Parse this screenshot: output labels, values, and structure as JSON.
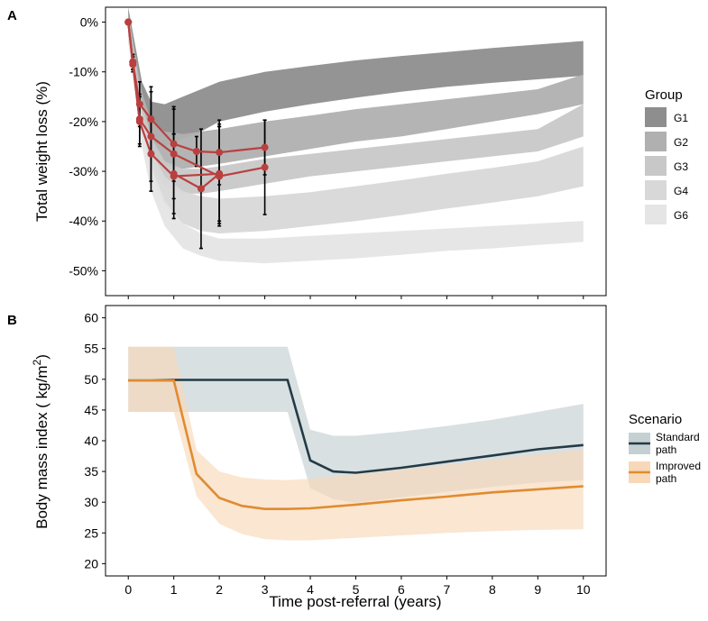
{
  "chart_data": [
    {
      "type": "line",
      "panel_label": "A",
      "title": "",
      "ylabel": "Total weight loss (%)",
      "xlabel": "",
      "xlim": [
        -0.5,
        10.5
      ],
      "ylim": [
        -55,
        3
      ],
      "y_ticks": [
        0,
        -10,
        -20,
        -30,
        -40,
        -50
      ],
      "y_tick_labels": [
        "0%",
        "-10%",
        "-20%",
        "-30%",
        "-40%",
        "-50%"
      ],
      "x_ticks": [
        0,
        1,
        2,
        3,
        4,
        5,
        6,
        7,
        8,
        9,
        10
      ],
      "legend": {
        "title": "Group",
        "position": "right",
        "entries": [
          {
            "label": "G1",
            "color": "#8e8e8e"
          },
          {
            "label": "G2",
            "color": "#b0b0b0"
          },
          {
            "label": "G3",
            "color": "#c8c8c8"
          },
          {
            "label": "G4",
            "color": "#d8d8d8"
          },
          {
            "label": "G6",
            "color": "#e5e5e5"
          }
        ]
      },
      "bands": [
        {
          "name": "G1",
          "color": "#8e8e8e",
          "x": [
            0,
            0.3,
            0.5,
            0.8,
            1.2,
            1.6,
            2,
            3,
            4,
            5,
            6,
            7,
            8,
            9,
            10
          ],
          "upper": [
            3,
            -12,
            -16,
            -16.5,
            -15,
            -13.5,
            -12,
            -10,
            -8.8,
            -7.7,
            -6.8,
            -6,
            -5.2,
            -4.5,
            -3.8
          ],
          "lower": [
            -2,
            -20,
            -24,
            -25,
            -23.5,
            -22,
            -20,
            -18,
            -16.5,
            -15.2,
            -14,
            -13,
            -12.2,
            -11.5,
            -10.8
          ]
        },
        {
          "name": "G2",
          "color": "#b0b0b0",
          "x": [
            0,
            0.3,
            0.5,
            0.8,
            1.2,
            1.6,
            2,
            3,
            4,
            5,
            6,
            7,
            8,
            9,
            10
          ],
          "upper": [
            2,
            -14,
            -20,
            -22,
            -22.5,
            -22,
            -21.5,
            -20,
            -18.8,
            -17.5,
            -16.5,
            -15.5,
            -14.5,
            -13.5,
            -10.5
          ],
          "lower": [
            -3,
            -20,
            -26,
            -29,
            -29.5,
            -29,
            -28.5,
            -27,
            -25.5,
            -24,
            -23,
            -21.5,
            -20,
            -18.5,
            -16.5
          ]
        },
        {
          "name": "G3",
          "color": "#c8c8c8",
          "x": [
            0,
            0.3,
            0.5,
            0.8,
            1.2,
            1.6,
            2,
            3,
            4,
            5,
            6,
            7,
            8,
            9,
            10
          ],
          "upper": [
            1,
            -16,
            -23,
            -28,
            -29.5,
            -29.5,
            -29,
            -27.5,
            -26.5,
            -25.5,
            -24.5,
            -23.5,
            -22.5,
            -21.5,
            -16.5
          ],
          "lower": [
            -3,
            -21,
            -28,
            -33,
            -34.5,
            -34.5,
            -34,
            -32.5,
            -31,
            -30,
            -29,
            -28,
            -27,
            -26,
            -23
          ]
        },
        {
          "name": "G4",
          "color": "#d8d8d8",
          "x": [
            0,
            0.3,
            0.5,
            0.8,
            1.2,
            1.6,
            2,
            3,
            4,
            5,
            6,
            7,
            8,
            9,
            10
          ],
          "upper": [
            0,
            -18,
            -26,
            -31,
            -34,
            -35,
            -35.5,
            -35,
            -34.2,
            -33,
            -31.8,
            -30.5,
            -29.3,
            -28,
            -25
          ],
          "lower": [
            -4,
            -23,
            -31,
            -37,
            -40.5,
            -42,
            -42.5,
            -42,
            -41,
            -40,
            -38.8,
            -37.5,
            -36.3,
            -35,
            -33
          ]
        },
        {
          "name": "G6",
          "color": "#e5e5e5",
          "x": [
            0,
            0.3,
            0.5,
            0.8,
            1.2,
            1.6,
            2,
            3,
            4,
            5,
            6,
            7,
            8,
            9,
            10
          ],
          "upper": [
            -1,
            -20,
            -29,
            -36,
            -40.5,
            -42.5,
            -43.5,
            -43.5,
            -43,
            -42.5,
            -42,
            -41.5,
            -41,
            -40.5,
            -40
          ],
          "lower": [
            -4,
            -25,
            -34,
            -41,
            -45.5,
            -47,
            -48,
            -48.5,
            -48,
            -47.5,
            -46.8,
            -46,
            -45.5,
            -44.8,
            -44.2
          ]
        }
      ],
      "series": [
        {
          "name": "obs1",
          "color": "#b9403f",
          "x": [
            0,
            0.1,
            0.25,
            0.5,
            1,
            1.5,
            2,
            3
          ],
          "y": [
            0,
            -8,
            -16.5,
            -19.5,
            -24.5,
            -26,
            -26.2,
            -25.2
          ],
          "err": [
            0,
            1.5,
            4.5,
            6.5,
            7.5,
            3,
            6.5,
            5.5
          ]
        },
        {
          "name": "obs2",
          "color": "#b9403f",
          "x": [
            0,
            0.1,
            0.25,
            0.5,
            1,
            2,
            3
          ],
          "y": [
            0,
            -8.5,
            -19.5,
            -23,
            -26.5,
            -31,
            -29.2
          ],
          "err": [
            0,
            1.5,
            5,
            9,
            9,
            10,
            9.5
          ]
        },
        {
          "name": "obs3",
          "color": "#b9403f",
          "x": [
            0,
            0.1,
            0.25,
            0.5,
            1,
            2
          ],
          "y": [
            0,
            -8,
            -20,
            -26.5,
            -31,
            -30.5
          ],
          "err": [
            0,
            1.5,
            5,
            7.5,
            8.5,
            10
          ]
        },
        {
          "name": "obs4",
          "color": "#b9403f",
          "x": [
            1,
            1.6,
            2
          ],
          "y": [
            -30.5,
            -33.5,
            -30.5
          ],
          "err": [
            8,
            12,
            9.5
          ]
        }
      ]
    },
    {
      "type": "line",
      "panel_label": "B",
      "title": "",
      "ylabel_main": "Body mass index ( kg/m",
      "ylabel_sup": "2",
      "ylabel_close": ")",
      "xlabel": "Time post-referral (years)",
      "xlim": [
        -0.5,
        10.5
      ],
      "ylim": [
        18,
        62
      ],
      "y_ticks": [
        20,
        25,
        30,
        35,
        40,
        45,
        50,
        55,
        60
      ],
      "y_tick_labels": [
        "20",
        "25",
        "30",
        "35",
        "40",
        "45",
        "50",
        "55",
        "60"
      ],
      "x_ticks": [
        0,
        1,
        2,
        3,
        4,
        5,
        6,
        7,
        8,
        9,
        10
      ],
      "x_tick_labels": [
        "0",
        "1",
        "2",
        "3",
        "4",
        "5",
        "6",
        "7",
        "8",
        "9",
        "10"
      ],
      "legend": {
        "title": "Scenario",
        "position": "right",
        "entries": [
          {
            "label_line1": "Standard",
            "label_line2": "path",
            "color": "#233b46",
            "fill": "#c5d0d2"
          },
          {
            "label_line1": "Improved",
            "label_line2": "path",
            "color": "#e08b30",
            "fill": "#f7d8b8"
          }
        ]
      },
      "series": [
        {
          "name": "Standard path",
          "color": "#233b46",
          "fill": "#c5d0d2",
          "x": [
            0,
            0.5,
            1,
            2,
            3,
            3.5,
            4,
            4.5,
            5,
            6,
            7,
            8,
            9,
            10
          ],
          "y": [
            49.8,
            49.8,
            49.9,
            49.9,
            49.9,
            49.9,
            36.8,
            35,
            34.8,
            35.6,
            36.6,
            37.6,
            38.6,
            39.3
          ],
          "upper": [
            55.3,
            55.3,
            55.3,
            55.3,
            55.3,
            55.3,
            41.8,
            40.8,
            40.8,
            41.5,
            42.4,
            43.4,
            44.7,
            46
          ],
          "lower": [
            44.7,
            44.7,
            44.7,
            44.7,
            44.7,
            44.7,
            32.3,
            30.5,
            29.9,
            30.8,
            31.7,
            32.5,
            33.2,
            33.6
          ]
        },
        {
          "name": "Improved path",
          "color": "#e08b30",
          "fill": "#f7d8b8",
          "x": [
            0,
            0.5,
            1,
            1.5,
            2,
            2.5,
            3,
            3.5,
            4,
            5,
            6,
            7,
            8,
            9,
            10
          ],
          "y": [
            49.8,
            49.8,
            49.8,
            34.6,
            30.7,
            29.4,
            28.9,
            28.9,
            29,
            29.6,
            30.3,
            30.9,
            31.6,
            32.1,
            32.6
          ],
          "upper": [
            55.3,
            55.3,
            55.3,
            38.5,
            35,
            34,
            33.7,
            33.6,
            33.8,
            34.5,
            35.3,
            36.1,
            36.9,
            37.8,
            38.5
          ],
          "lower": [
            44.7,
            44.7,
            44.7,
            31,
            26.5,
            24.8,
            24,
            23.8,
            23.8,
            24.2,
            24.6,
            25,
            25.3,
            25.5,
            25.6
          ]
        }
      ]
    }
  ]
}
